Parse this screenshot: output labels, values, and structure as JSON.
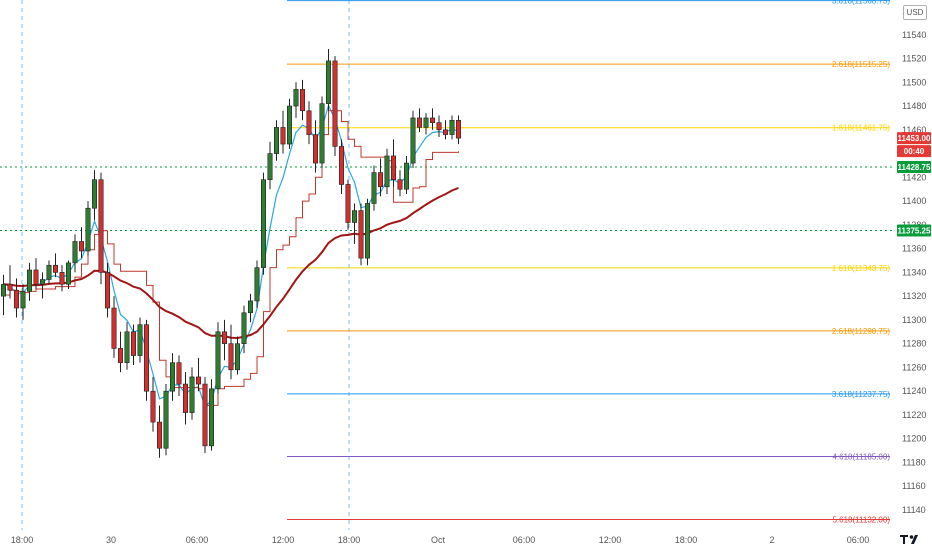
{
  "chart_data": {
    "type": "candlestick",
    "currency": "USD",
    "y_range": [
      11120,
      11570
    ],
    "y_ticks": [
      11140,
      11160,
      11180,
      11200,
      11220,
      11240,
      11260,
      11280,
      11300,
      11320,
      11340,
      11360,
      11380,
      11400,
      11420,
      11440,
      11460,
      11480,
      11500,
      11520,
      11540,
      11560
    ],
    "x_ticks": [
      "18:00",
      "30",
      "06:00",
      "12:00",
      "18:00",
      "Oct",
      "06:00",
      "12:00",
      "18:00",
      "2",
      "06:00"
    ],
    "session_breaks": [
      "18:00",
      "18:00"
    ],
    "fib_levels": [
      {
        "label": "3.618(11568.75)",
        "value": 11568.75,
        "color": "#2196f3"
      },
      {
        "label": "2.618(11515.25)",
        "value": 11515.25,
        "color": "#ff9800"
      },
      {
        "label": "1.618(11461.75)",
        "value": 11461.75,
        "color": "#ffd400"
      },
      {
        "label": "1.618(11343.75)",
        "value": 11343.75,
        "color": "#ffd400"
      },
      {
        "label": "2.618(11290.75)",
        "value": 11290.75,
        "color": "#ff9800"
      },
      {
        "label": "3.618(11237.75)",
        "value": 11237.75,
        "color": "#2196f3"
      },
      {
        "label": "4.618(11185.00)",
        "value": 11185.0,
        "color": "#7e57c2"
      },
      {
        "label": "5.618(11132.00)",
        "value": 11132.0,
        "color": "#e53935"
      }
    ],
    "horizontal_lines": [
      {
        "label": "11428.75",
        "value": 11428.75,
        "color": "#089c3b"
      },
      {
        "label": "11375.25",
        "value": 11375.25,
        "color": "#089c3b"
      }
    ],
    "last_price": {
      "label": "11453.00",
      "value": 11453.0,
      "color": "#e53935"
    },
    "countdown": "00:40",
    "candles": [
      [
        11320,
        11338,
        11304,
        11330
      ],
      [
        11330,
        11346,
        11318,
        11325
      ],
      [
        11325,
        11335,
        11302,
        11310
      ],
      [
        11310,
        11330,
        11300,
        11324
      ],
      [
        11324,
        11348,
        11316,
        11342
      ],
      [
        11342,
        11352,
        11326,
        11330
      ],
      [
        11330,
        11340,
        11318,
        11334
      ],
      [
        11334,
        11350,
        11330,
        11346
      ],
      [
        11346,
        11356,
        11336,
        11340
      ],
      [
        11340,
        11346,
        11324,
        11330
      ],
      [
        11330,
        11350,
        11326,
        11348
      ],
      [
        11348,
        11372,
        11340,
        11366
      ],
      [
        11366,
        11378,
        11352,
        11358
      ],
      [
        11358,
        11400,
        11354,
        11394
      ],
      [
        11394,
        11426,
        11384,
        11418
      ],
      [
        11418,
        11424,
        11330,
        11340
      ],
      [
        11340,
        11348,
        11302,
        11310
      ],
      [
        11310,
        11320,
        11268,
        11276
      ],
      [
        11276,
        11290,
        11256,
        11264
      ],
      [
        11264,
        11298,
        11258,
        11290
      ],
      [
        11290,
        11296,
        11262,
        11270
      ],
      [
        11270,
        11302,
        11264,
        11296
      ],
      [
        11296,
        11300,
        11232,
        11240
      ],
      [
        11240,
        11252,
        11206,
        11214
      ],
      [
        11214,
        11228,
        11184,
        11192
      ],
      [
        11192,
        11246,
        11186,
        11240
      ],
      [
        11240,
        11272,
        11232,
        11264
      ],
      [
        11264,
        11270,
        11236,
        11246
      ],
      [
        11246,
        11256,
        11212,
        11222
      ],
      [
        11222,
        11260,
        11216,
        11252
      ],
      [
        11252,
        11268,
        11240,
        11246
      ],
      [
        11246,
        11252,
        11188,
        11194
      ],
      [
        11194,
        11250,
        11190,
        11242
      ],
      [
        11242,
        11298,
        11238,
        11290
      ],
      [
        11290,
        11300,
        11266,
        11280
      ],
      [
        11280,
        11296,
        11250,
        11258
      ],
      [
        11258,
        11286,
        11254,
        11280
      ],
      [
        11280,
        11312,
        11272,
        11306
      ],
      [
        11306,
        11322,
        11298,
        11316
      ],
      [
        11316,
        11350,
        11310,
        11344
      ],
      [
        11344,
        11424,
        11338,
        11418
      ],
      [
        11418,
        11450,
        11410,
        11440
      ],
      [
        11440,
        11468,
        11434,
        11462
      ],
      [
        11462,
        11476,
        11440,
        11448
      ],
      [
        11448,
        11486,
        11444,
        11480
      ],
      [
        11480,
        11500,
        11470,
        11494
      ],
      [
        11494,
        11502,
        11468,
        11476
      ],
      [
        11476,
        11484,
        11448,
        11456
      ],
      [
        11456,
        11468,
        11424,
        11432
      ],
      [
        11432,
        11488,
        11428,
        11482
      ],
      [
        11482,
        11528,
        11476,
        11518
      ],
      [
        11518,
        11522,
        11438,
        11446
      ],
      [
        11446,
        11452,
        11406,
        11414
      ],
      [
        11414,
        11418,
        11376,
        11382
      ],
      [
        11382,
        11398,
        11364,
        11392
      ],
      [
        11392,
        11398,
        11346,
        11352
      ],
      [
        11352,
        11402,
        11346,
        11398
      ],
      [
        11398,
        11430,
        11392,
        11424
      ],
      [
        11424,
        11436,
        11404,
        11412
      ],
      [
        11412,
        11444,
        11406,
        11438
      ],
      [
        11438,
        11452,
        11412,
        11418
      ],
      [
        11418,
        11426,
        11404,
        11410
      ],
      [
        11410,
        11438,
        11406,
        11432
      ],
      [
        11432,
        11476,
        11428,
        11470
      ],
      [
        11470,
        11478,
        11458,
        11462
      ],
      [
        11462,
        11474,
        11456,
        11470
      ],
      [
        11470,
        11478,
        11460,
        11466
      ],
      [
        11466,
        11472,
        11454,
        11460
      ],
      [
        11460,
        11468,
        11452,
        11456
      ],
      [
        11456,
        11472,
        11452,
        11468
      ],
      [
        11468,
        11472,
        11448,
        11453
      ]
    ]
  }
}
